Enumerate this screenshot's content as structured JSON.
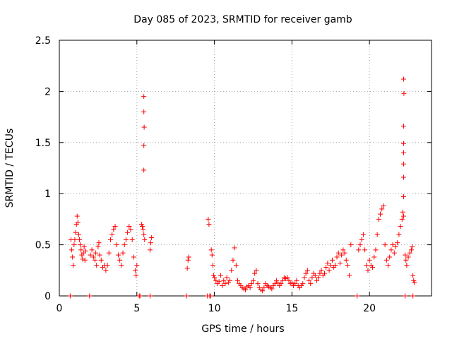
{
  "chart_data": {
    "type": "scatter",
    "title": "Day 085 of 2023, SRMTID for receiver gamb",
    "xlabel": "GPS time / hours",
    "ylabel": "SRMTID / TECUs",
    "xlim": [
      0,
      24
    ],
    "ylim": [
      0,
      2.5
    ],
    "xticks": [
      0,
      5,
      10,
      15,
      20
    ],
    "xtick_labels": [
      "0",
      "5",
      "10",
      "15",
      "20"
    ],
    "yticks": [
      0,
      0.5,
      1,
      1.5,
      2,
      2.5
    ],
    "ytick_labels": [
      "0",
      "0.5",
      "1",
      "1.5",
      "2",
      "2.5"
    ],
    "grid": true,
    "marker": "+",
    "series": [
      {
        "name": "SRMTID",
        "color": "#ff0000",
        "points": [
          [
            0.7,
            0
          ],
          [
            0.75,
            0.55
          ],
          [
            0.8,
            0.45
          ],
          [
            0.85,
            0.38
          ],
          [
            0.9,
            0.3
          ],
          [
            0.95,
            0.5
          ],
          [
            1.0,
            0.55
          ],
          [
            1.05,
            0.62
          ],
          [
            1.1,
            0.7
          ],
          [
            1.15,
            0.78
          ],
          [
            1.2,
            0.72
          ],
          [
            1.25,
            0.6
          ],
          [
            1.3,
            0.55
          ],
          [
            1.35,
            0.5
          ],
          [
            1.4,
            0.45
          ],
          [
            1.45,
            0.4
          ],
          [
            1.5,
            0.36
          ],
          [
            1.55,
            0.42
          ],
          [
            1.6,
            0.48
          ],
          [
            1.65,
            0.35
          ],
          [
            1.7,
            0.44
          ],
          [
            1.95,
            0
          ],
          [
            2.0,
            0.4
          ],
          [
            2.1,
            0.45
          ],
          [
            2.2,
            0.38
          ],
          [
            2.3,
            0.35
          ],
          [
            2.35,
            0.42
          ],
          [
            2.4,
            0.3
          ],
          [
            2.5,
            0.48
          ],
          [
            2.55,
            0.52
          ],
          [
            2.6,
            0.4
          ],
          [
            2.7,
            0.35
          ],
          [
            2.8,
            0.28
          ],
          [
            2.9,
            0.3
          ],
          [
            3.0,
            0.25
          ],
          [
            3.1,
            0.3
          ],
          [
            3.2,
            0.42
          ],
          [
            3.3,
            0.55
          ],
          [
            3.4,
            0.6
          ],
          [
            3.5,
            0.65
          ],
          [
            3.6,
            0.68
          ],
          [
            3.7,
            0.5
          ],
          [
            3.8,
            0.4
          ],
          [
            3.9,
            0.35
          ],
          [
            4.0,
            0.3
          ],
          [
            4.1,
            0.42
          ],
          [
            4.2,
            0.5
          ],
          [
            4.3,
            0.55
          ],
          [
            4.4,
            0.62
          ],
          [
            4.5,
            0.68
          ],
          [
            4.6,
            0.65
          ],
          [
            4.7,
            0.55
          ],
          [
            4.8,
            0.38
          ],
          [
            4.9,
            0.25
          ],
          [
            4.95,
            0.2
          ],
          [
            5.0,
            0.3
          ],
          [
            5.15,
            0
          ],
          [
            5.2,
            0
          ],
          [
            5.3,
            0.7
          ],
          [
            5.35,
            0.68
          ],
          [
            5.4,
            0.65
          ],
          [
            5.45,
            0.6
          ],
          [
            5.5,
            0.55
          ],
          [
            5.45,
            1.95
          ],
          [
            5.45,
            1.8
          ],
          [
            5.47,
            1.65
          ],
          [
            5.45,
            1.47
          ],
          [
            5.45,
            1.23
          ],
          [
            5.85,
            0.45
          ],
          [
            5.9,
            0.52
          ],
          [
            5.95,
            0.57
          ],
          [
            5.85,
            0
          ],
          [
            8.2,
            0
          ],
          [
            8.25,
            0.27
          ],
          [
            8.3,
            0.35
          ],
          [
            8.35,
            0.38
          ],
          [
            9.55,
            0
          ],
          [
            9.6,
            0.75
          ],
          [
            9.65,
            0.7
          ],
          [
            9.7,
            0
          ],
          [
            9.75,
            0
          ],
          [
            9.8,
            0.45
          ],
          [
            9.85,
            0.4
          ],
          [
            9.9,
            0.3
          ],
          [
            9.95,
            0.2
          ],
          [
            10.0,
            0.18
          ],
          [
            10.1,
            0.15
          ],
          [
            10.2,
            0.12
          ],
          [
            10.3,
            0.14
          ],
          [
            10.4,
            0.2
          ],
          [
            10.5,
            0.1
          ],
          [
            10.6,
            0.15
          ],
          [
            10.7,
            0.12
          ],
          [
            10.8,
            0.18
          ],
          [
            10.9,
            0.13
          ],
          [
            11.0,
            0.15
          ],
          [
            11.1,
            0.25
          ],
          [
            11.2,
            0.35
          ],
          [
            11.3,
            0.47
          ],
          [
            11.4,
            0.3
          ],
          [
            11.5,
            0.15
          ],
          [
            11.6,
            0.12
          ],
          [
            11.7,
            0.1
          ],
          [
            11.8,
            0.08
          ],
          [
            11.9,
            0.07
          ],
          [
            12.0,
            0.06
          ],
          [
            12.1,
            0.09
          ],
          [
            12.2,
            0.1
          ],
          [
            12.3,
            0.08
          ],
          [
            12.4,
            0.12
          ],
          [
            12.5,
            0.15
          ],
          [
            12.6,
            0.22
          ],
          [
            12.7,
            0.25
          ],
          [
            12.8,
            0.12
          ],
          [
            12.9,
            0.08
          ],
          [
            13.0,
            0.06
          ],
          [
            13.1,
            0.05
          ],
          [
            13.2,
            0.08
          ],
          [
            13.3,
            0.12
          ],
          [
            13.4,
            0.1
          ],
          [
            13.5,
            0.09
          ],
          [
            13.6,
            0.08
          ],
          [
            13.7,
            0.07
          ],
          [
            13.8,
            0.1
          ],
          [
            13.9,
            0.12
          ],
          [
            14.0,
            0.15
          ],
          [
            14.1,
            0.13
          ],
          [
            14.2,
            0.1
          ],
          [
            14.3,
            0.12
          ],
          [
            14.4,
            0.15
          ],
          [
            14.5,
            0.18
          ],
          [
            14.6,
            0.17
          ],
          [
            14.7,
            0.18
          ],
          [
            14.8,
            0.15
          ],
          [
            14.9,
            0.12
          ],
          [
            15.0,
            0.13
          ],
          [
            15.1,
            0.1
          ],
          [
            15.2,
            0.12
          ],
          [
            15.3,
            0.15
          ],
          [
            15.4,
            0.1
          ],
          [
            15.5,
            0.08
          ],
          [
            15.6,
            0.1
          ],
          [
            15.7,
            0.12
          ],
          [
            15.8,
            0.18
          ],
          [
            15.9,
            0.22
          ],
          [
            16.0,
            0.25
          ],
          [
            16.1,
            0.15
          ],
          [
            16.2,
            0.12
          ],
          [
            16.3,
            0.18
          ],
          [
            16.4,
            0.22
          ],
          [
            16.5,
            0.2
          ],
          [
            16.6,
            0.15
          ],
          [
            16.7,
            0.18
          ],
          [
            16.8,
            0.22
          ],
          [
            16.9,
            0.25
          ],
          [
            17.0,
            0.2
          ],
          [
            17.1,
            0.22
          ],
          [
            17.2,
            0.28
          ],
          [
            17.3,
            0.32
          ],
          [
            17.4,
            0.25
          ],
          [
            17.5,
            0.3
          ],
          [
            17.6,
            0.35
          ],
          [
            17.7,
            0.28
          ],
          [
            17.8,
            0.3
          ],
          [
            17.9,
            0.38
          ],
          [
            18.0,
            0.42
          ],
          [
            18.1,
            0.32
          ],
          [
            18.2,
            0.4
          ],
          [
            18.3,
            0.45
          ],
          [
            18.4,
            0.42
          ],
          [
            18.5,
            0.35
          ],
          [
            18.6,
            0.3
          ],
          [
            18.7,
            0.2
          ],
          [
            18.8,
            0.5
          ],
          [
            19.2,
            0
          ],
          [
            19.3,
            0.45
          ],
          [
            19.4,
            0.5
          ],
          [
            19.5,
            0.55
          ],
          [
            19.6,
            0.6
          ],
          [
            19.7,
            0.45
          ],
          [
            19.8,
            0.3
          ],
          [
            19.9,
            0.25
          ],
          [
            20.0,
            0.35
          ],
          [
            20.1,
            0.3
          ],
          [
            20.2,
            0.28
          ],
          [
            20.3,
            0.38
          ],
          [
            20.4,
            0.45
          ],
          [
            20.5,
            0.6
          ],
          [
            20.6,
            0.75
          ],
          [
            20.7,
            0.8
          ],
          [
            20.8,
            0.85
          ],
          [
            20.9,
            0.88
          ],
          [
            21.0,
            0.5
          ],
          [
            21.1,
            0.35
          ],
          [
            21.2,
            0.3
          ],
          [
            21.3,
            0.38
          ],
          [
            21.4,
            0.45
          ],
          [
            21.5,
            0.5
          ],
          [
            21.6,
            0.42
          ],
          [
            21.7,
            0.48
          ],
          [
            21.8,
            0.52
          ],
          [
            21.9,
            0.6
          ],
          [
            22.0,
            0.68
          ],
          [
            22.1,
            0.75
          ],
          [
            22.15,
            0.82
          ],
          [
            22.2,
            0.78
          ],
          [
            22.3,
            0.4
          ],
          [
            22.35,
            0.35
          ],
          [
            22.4,
            0.3
          ],
          [
            22.5,
            0.38
          ],
          [
            22.6,
            0.42
          ],
          [
            22.7,
            0.45
          ],
          [
            22.75,
            0.48
          ],
          [
            22.8,
            0.2
          ],
          [
            22.85,
            0.15
          ],
          [
            22.9,
            0.13
          ],
          [
            22.8,
            0
          ],
          [
            22.2,
            2.12
          ],
          [
            22.22,
            1.98
          ],
          [
            22.2,
            1.66
          ],
          [
            22.2,
            1.49
          ],
          [
            22.2,
            1.4
          ],
          [
            22.2,
            1.29
          ],
          [
            22.2,
            1.16
          ],
          [
            22.2,
            0.97
          ],
          [
            22.3,
            0
          ]
        ]
      }
    ]
  }
}
